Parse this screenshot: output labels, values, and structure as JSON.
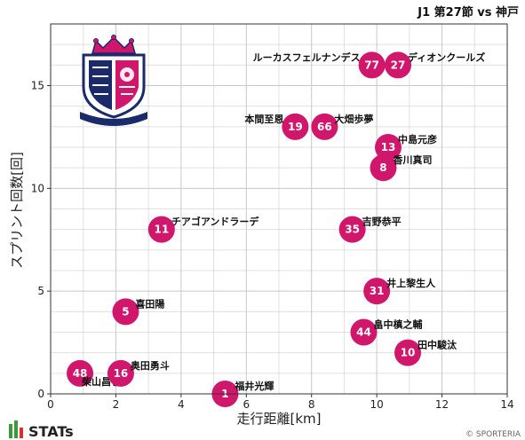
{
  "brand": {
    "name": "STATs",
    "credit": "© SPORTERIA",
    "point_color": "#d0176b"
  },
  "chart_data": {
    "type": "scatter",
    "title": "J1 第27節 vs 神戸",
    "xlabel": "走行距離[km]",
    "ylabel": "スプリント回数[回]",
    "xlim": [
      0,
      14
    ],
    "ylim": [
      0,
      18
    ],
    "xticks": [
      "0",
      "2",
      "4",
      "6",
      "8",
      "10",
      "12",
      "14"
    ],
    "yticks": [
      "0",
      "5",
      "10",
      "15"
    ],
    "grid": true,
    "points": [
      {
        "number": "77",
        "name": "ルーカスフェルナンデス",
        "x": 9.85,
        "y": 16,
        "label_side": "left"
      },
      {
        "number": "27",
        "name": "ディオンクールズ",
        "x": 10.65,
        "y": 16,
        "label_side": "right"
      },
      {
        "number": "19",
        "name": "本間至恩",
        "x": 7.5,
        "y": 13,
        "label_side": "left"
      },
      {
        "number": "66",
        "name": "大畑歩夢",
        "x": 8.4,
        "y": 13,
        "label_side": "right"
      },
      {
        "number": "13",
        "name": "中島元彦",
        "x": 10.35,
        "y": 12,
        "label_side": "right"
      },
      {
        "number": "8",
        "name": "香川真司",
        "x": 10.2,
        "y": 11,
        "label_side": "right"
      },
      {
        "number": "11",
        "name": "チアゴアンドラーデ",
        "x": 3.4,
        "y": 8,
        "label_side": "right"
      },
      {
        "number": "35",
        "name": "吉野恭平",
        "x": 9.25,
        "y": 8,
        "label_side": "right"
      },
      {
        "number": "31",
        "name": "井上黎生人",
        "x": 10.0,
        "y": 5,
        "label_side": "right"
      },
      {
        "number": "5",
        "name": "喜田陽",
        "x": 2.3,
        "y": 4,
        "label_side": "right"
      },
      {
        "number": "44",
        "name": "畠中槙之輔",
        "x": 9.6,
        "y": 3,
        "label_side": "right"
      },
      {
        "number": "10",
        "name": "田中駿汰",
        "x": 10.95,
        "y": 2,
        "label_side": "right"
      },
      {
        "number": "48",
        "name": "柴山昌也",
        "x": 0.9,
        "y": 1,
        "label_side": "below"
      },
      {
        "number": "16",
        "name": "奥田勇斗",
        "x": 2.15,
        "y": 1,
        "label_side": "right"
      },
      {
        "number": "1",
        "name": "福井光輝",
        "x": 5.35,
        "y": 0,
        "label_side": "right"
      }
    ]
  }
}
